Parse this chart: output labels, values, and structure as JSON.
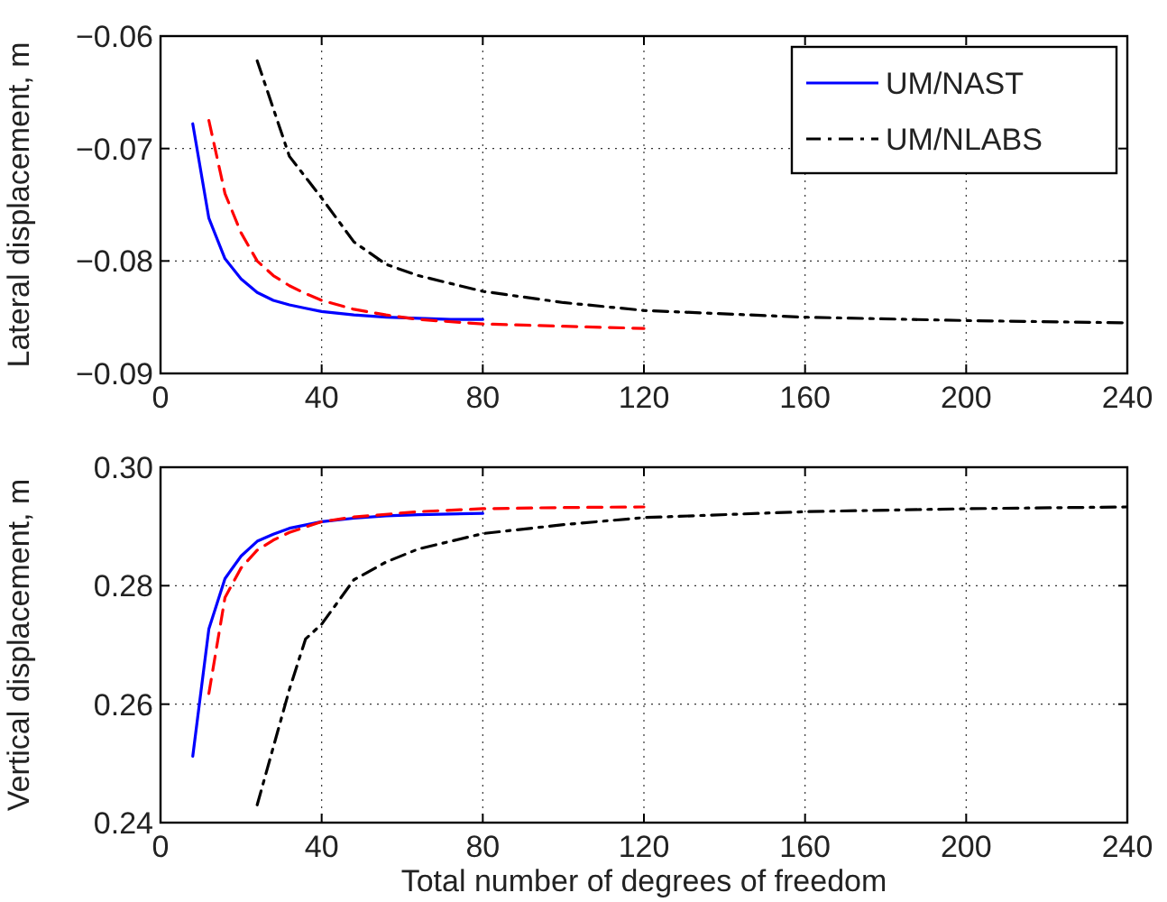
{
  "chart_data": [
    {
      "type": "line",
      "ylabel": "Lateral displacement, m",
      "xlim": [
        0,
        240
      ],
      "xticks": [
        0,
        40,
        80,
        120,
        160,
        200,
        240
      ],
      "ylim": [
        -0.09,
        -0.06
      ],
      "yticks": [
        {
          "value": -0.09,
          "label": "−0.09"
        },
        {
          "value": -0.08,
          "label": "−0.08"
        },
        {
          "value": -0.07,
          "label": "−0.07"
        },
        {
          "value": -0.06,
          "label": "−0.06"
        }
      ],
      "grid": true,
      "legend": "top right",
      "series": [
        {
          "name": "UM/NAST",
          "color": "#0000ff",
          "line_style": "solid",
          "x": [
            8,
            12,
            16,
            20,
            24,
            28,
            32,
            36,
            40,
            48,
            56,
            64,
            72,
            80
          ],
          "values": [
            -0.0678,
            -0.0762,
            -0.0798,
            -0.0816,
            -0.0828,
            -0.0835,
            -0.0839,
            -0.0842,
            -0.0845,
            -0.0848,
            -0.085,
            -0.0851,
            -0.0852,
            -0.0852
          ]
        },
        {
          "color": "#ff0000",
          "line_style": "dashed",
          "x": [
            12,
            16,
            20,
            24,
            28,
            32,
            36,
            40,
            48,
            56,
            64,
            80,
            100,
            120
          ],
          "values": [
            -0.0675,
            -0.074,
            -0.0775,
            -0.08,
            -0.0813,
            -0.0822,
            -0.0829,
            -0.0835,
            -0.0843,
            -0.0848,
            -0.0852,
            -0.0856,
            -0.0858,
            -0.086
          ]
        },
        {
          "name": "UM/NLABS",
          "color": "#000000",
          "line_style": "dashdot",
          "x": [
            24,
            32,
            40,
            48,
            56,
            64,
            80,
            100,
            120,
            160,
            200,
            240
          ],
          "values": [
            -0.0622,
            -0.0707,
            -0.0744,
            -0.0783,
            -0.0803,
            -0.0813,
            -0.0827,
            -0.0837,
            -0.0844,
            -0.085,
            -0.0853,
            -0.0855
          ]
        }
      ]
    },
    {
      "type": "line",
      "xlabel": "Total number of degrees of freedom",
      "ylabel": "Vertical displacement, m",
      "xlim": [
        0,
        240
      ],
      "xticks": [
        0,
        40,
        80,
        120,
        160,
        200,
        240
      ],
      "ylim": [
        0.24,
        0.3
      ],
      "yticks": [
        0.24,
        0.26,
        0.28,
        {
          "value": 0.3,
          "label": "0.30"
        }
      ],
      "grid": true,
      "series": [
        {
          "color": "#0000ff",
          "line_style": "solid",
          "x": [
            8,
            12,
            16,
            20,
            24,
            28,
            32,
            40,
            48,
            56,
            64,
            80
          ],
          "values": [
            0.2512,
            0.2727,
            0.2812,
            0.285,
            0.2875,
            0.2887,
            0.2897,
            0.2908,
            0.2914,
            0.2918,
            0.292,
            0.2922
          ]
        },
        {
          "color": "#ff0000",
          "line_style": "dashed",
          "x": [
            12,
            16,
            20,
            24,
            28,
            32,
            40,
            48,
            64,
            80,
            100,
            120
          ],
          "values": [
            0.2618,
            0.278,
            0.283,
            0.286,
            0.2877,
            0.289,
            0.2908,
            0.2916,
            0.2925,
            0.293,
            0.2932,
            0.2933
          ]
        },
        {
          "color": "#000000",
          "line_style": "dashdot",
          "x": [
            24,
            32,
            36,
            40,
            48,
            56,
            64,
            80,
            100,
            120,
            160,
            200,
            240
          ],
          "values": [
            0.243,
            0.2625,
            0.271,
            0.2735,
            0.281,
            0.284,
            0.2862,
            0.2888,
            0.2903,
            0.2915,
            0.2925,
            0.293,
            0.2933
          ]
        }
      ]
    }
  ]
}
